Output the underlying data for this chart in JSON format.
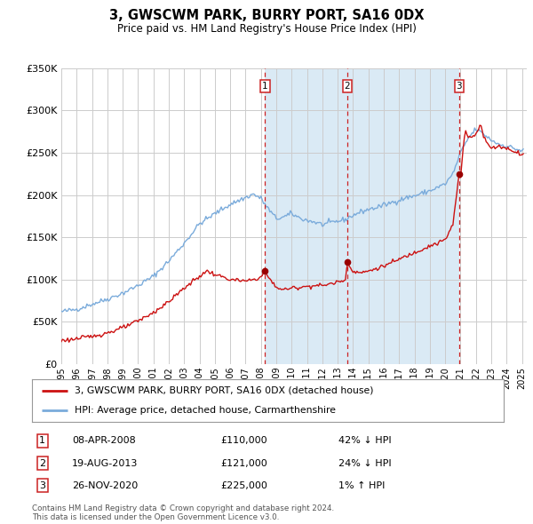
{
  "title": "3, GWSCWM PARK, BURRY PORT, SA16 0DX",
  "subtitle": "Price paid vs. HM Land Registry's House Price Index (HPI)",
  "hpi_label": "HPI: Average price, detached house, Carmarthenshire",
  "price_label": "3, GWSCWM PARK, BURRY PORT, SA16 0DX (detached house)",
  "footer": "Contains HM Land Registry data © Crown copyright and database right 2024.\nThis data is licensed under the Open Government Licence v3.0.",
  "ylim": [
    0,
    350000
  ],
  "yticks": [
    0,
    50000,
    100000,
    150000,
    200000,
    250000,
    300000,
    350000
  ],
  "ytick_labels": [
    "£0",
    "£50K",
    "£100K",
    "£150K",
    "£200K",
    "£250K",
    "£300K",
    "£350K"
  ],
  "hpi_color": "#7aabdb",
  "price_color": "#cc1111",
  "sale_marker_color": "#990000",
  "shading_color": "#daeaf5",
  "transactions": [
    {
      "id": 1,
      "date": 2008.27,
      "price": 110000,
      "label": "1",
      "desc": "08-APR-2008",
      "pct": "42% ↓ HPI"
    },
    {
      "id": 2,
      "date": 2013.63,
      "price": 121000,
      "label": "2",
      "desc": "19-AUG-2013",
      "pct": "24% ↓ HPI"
    },
    {
      "id": 3,
      "date": 2020.91,
      "price": 225000,
      "label": "3",
      "desc": "26-NOV-2020",
      "pct": "1% ↑ HPI"
    }
  ],
  "xlim": [
    1995,
    2025.3
  ],
  "xtick_years": [
    1995,
    1996,
    1997,
    1998,
    1999,
    2000,
    2001,
    2002,
    2003,
    2004,
    2005,
    2006,
    2007,
    2008,
    2009,
    2010,
    2011,
    2012,
    2013,
    2014,
    2015,
    2016,
    2017,
    2018,
    2019,
    2020,
    2021,
    2022,
    2023,
    2024,
    2025
  ]
}
